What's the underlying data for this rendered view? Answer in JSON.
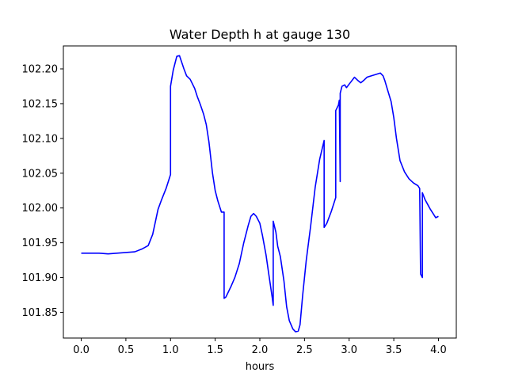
{
  "chart_data": {
    "type": "line",
    "title": "Water Depth h at gauge 130",
    "xlabel": "hours",
    "ylabel": "",
    "xlim": [
      -0.2,
      4.2
    ],
    "ylim": [
      101.813,
      102.233
    ],
    "xticks": [
      0.0,
      0.5,
      1.0,
      1.5,
      2.0,
      2.5,
      3.0,
      3.5,
      4.0
    ],
    "xtick_labels": [
      "0.0",
      "0.5",
      "1.0",
      "1.5",
      "2.0",
      "2.5",
      "3.0",
      "3.5",
      "4.0"
    ],
    "yticks": [
      101.85,
      101.9,
      101.95,
      102.0,
      102.05,
      102.1,
      102.15,
      102.2
    ],
    "ytick_labels": [
      "101.85",
      "101.90",
      "101.95",
      "102.00",
      "102.05",
      "102.10",
      "102.15",
      "102.20"
    ],
    "grid": false,
    "series": [
      {
        "color": "#0000ff",
        "x": [
          0.0,
          0.1,
          0.2,
          0.3,
          0.4,
          0.5,
          0.6,
          0.68,
          0.75,
          0.8,
          0.83,
          0.86,
          0.9,
          0.95,
          1.0,
          1.0,
          1.03,
          1.07,
          1.1,
          1.15,
          1.18,
          1.22,
          1.27,
          1.3,
          1.33,
          1.37,
          1.4,
          1.43,
          1.47,
          1.5,
          1.53,
          1.57,
          1.6,
          1.6,
          1.62,
          1.68,
          1.72,
          1.77,
          1.82,
          1.87,
          1.9,
          1.93,
          1.96,
          2.0,
          2.03,
          2.07,
          2.1,
          2.14,
          2.15,
          2.15,
          2.18,
          2.2,
          2.23,
          2.27,
          2.3,
          2.33,
          2.37,
          2.4,
          2.43,
          2.45,
          2.48,
          2.52,
          2.57,
          2.62,
          2.67,
          2.72,
          2.72,
          2.75,
          2.8,
          2.85,
          2.85,
          2.88,
          2.89,
          2.9,
          2.9,
          2.92,
          2.95,
          2.97,
          3.0,
          3.03,
          3.06,
          3.1,
          3.13,
          3.16,
          3.2,
          3.25,
          3.3,
          3.35,
          3.38,
          3.4,
          3.43,
          3.47,
          3.5,
          3.53,
          3.57,
          3.62,
          3.67,
          3.72,
          3.77,
          3.79,
          3.8,
          3.82,
          3.82,
          3.85,
          3.88,
          3.91,
          3.94,
          3.97,
          4.0
        ],
        "y": [
          101.935,
          101.935,
          101.935,
          101.934,
          101.935,
          101.936,
          101.937,
          101.941,
          101.946,
          101.962,
          101.98,
          101.998,
          102.012,
          102.028,
          102.048,
          102.175,
          102.198,
          102.218,
          102.219,
          102.2,
          102.19,
          102.185,
          102.172,
          102.16,
          102.15,
          102.135,
          102.12,
          102.095,
          102.05,
          102.025,
          102.01,
          101.994,
          101.994,
          101.87,
          101.872,
          101.888,
          101.9,
          101.92,
          101.95,
          101.975,
          101.988,
          101.992,
          101.988,
          101.978,
          101.96,
          101.932,
          101.905,
          101.87,
          101.86,
          101.981,
          101.965,
          101.945,
          101.93,
          101.895,
          101.858,
          101.838,
          101.826,
          101.822,
          101.823,
          101.832,
          101.875,
          101.925,
          101.975,
          102.03,
          102.07,
          102.097,
          101.972,
          101.978,
          101.995,
          102.015,
          102.14,
          102.148,
          102.155,
          102.038,
          102.165,
          102.175,
          102.177,
          102.173,
          102.178,
          102.183,
          102.188,
          102.183,
          102.18,
          102.183,
          102.188,
          102.19,
          102.192,
          102.194,
          102.19,
          102.183,
          102.17,
          102.153,
          102.13,
          102.1,
          102.068,
          102.052,
          102.042,
          102.036,
          102.032,
          102.028,
          101.905,
          101.9,
          102.022,
          102.012,
          102.005,
          101.998,
          101.992,
          101.986,
          101.988
        ]
      }
    ]
  }
}
